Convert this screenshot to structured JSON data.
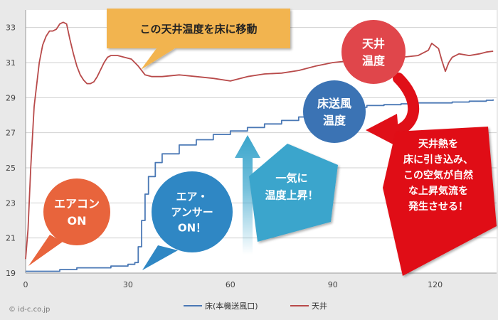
{
  "chart_data": {
    "type": "line",
    "title": "",
    "xlabel": "",
    "ylabel": "",
    "xlim": [
      0,
      138
    ],
    "ylim": [
      19,
      34
    ],
    "x_ticks": [
      "0",
      "30",
      "60",
      "90",
      "120"
    ],
    "y_ticks": [
      "19",
      "21",
      "23",
      "25",
      "27",
      "29",
      "31",
      "33"
    ],
    "grid": true,
    "legend_position": "bottom",
    "series": [
      {
        "name": "床(本機送風口)",
        "color": "#4a78b5",
        "x": [
          0,
          5,
          10,
          15,
          20,
          25,
          30,
          32,
          33,
          34,
          35,
          36,
          38,
          40,
          45,
          50,
          55,
          60,
          65,
          70,
          75,
          80,
          85,
          90,
          95,
          100,
          105,
          110,
          115,
          120,
          125,
          130,
          135,
          137
        ],
        "y": [
          19.1,
          19.1,
          19.2,
          19.3,
          19.3,
          19.4,
          19.5,
          19.6,
          20.5,
          22.0,
          23.5,
          24.5,
          25.3,
          25.8,
          26.3,
          26.6,
          26.9,
          27.1,
          27.3,
          27.5,
          27.7,
          27.9,
          28.1,
          28.3,
          28.45,
          28.55,
          28.6,
          28.65,
          28.7,
          28.7,
          28.75,
          28.8,
          28.85,
          28.9
        ]
      },
      {
        "name": "天井",
        "color": "#b84a4a",
        "x": [
          0,
          0.7,
          1.5,
          2.5,
          4,
          5,
          6,
          7,
          8,
          9,
          10,
          11,
          12,
          13,
          14,
          15,
          16,
          17,
          18,
          19,
          20,
          21,
          22,
          23,
          24,
          25,
          27,
          29,
          31,
          33,
          35,
          37,
          40,
          45,
          50,
          55,
          60,
          65,
          70,
          75,
          80,
          85,
          90,
          95,
          100,
          105,
          110,
          115,
          118,
          119,
          121,
          122,
          123,
          124,
          125,
          127,
          130,
          133,
          135,
          137
        ],
        "y": [
          19.8,
          21.5,
          25.0,
          28.5,
          31.0,
          32.0,
          32.5,
          32.8,
          32.8,
          32.9,
          33.2,
          33.3,
          33.2,
          32.3,
          31.5,
          30.8,
          30.3,
          30.0,
          29.8,
          29.8,
          29.9,
          30.2,
          30.6,
          31.0,
          31.3,
          31.4,
          31.4,
          31.3,
          31.2,
          30.8,
          30.3,
          30.2,
          30.2,
          30.3,
          30.2,
          30.1,
          29.95,
          30.2,
          30.35,
          30.4,
          30.55,
          30.8,
          31.0,
          31.1,
          31.15,
          31.2,
          31.3,
          31.4,
          31.7,
          32.1,
          31.8,
          31.1,
          30.5,
          31.0,
          31.3,
          31.5,
          31.4,
          31.5,
          31.6,
          31.65
        ]
      }
    ],
    "annotations": [
      {
        "id": "move",
        "text": "この天井温度を床に移動",
        "shape": "callout-box",
        "color": "#f2b450"
      },
      {
        "id": "aircon-on",
        "lines": [
          "エアコン",
          "ON"
        ],
        "shape": "bubble",
        "color": "#e8643c"
      },
      {
        "id": "answer-on",
        "lines": [
          "エア・",
          "アンサー",
          "ON！"
        ],
        "shape": "bubble",
        "color": "#2f87c4"
      },
      {
        "id": "rise",
        "lines": [
          "一気に",
          "温度上昇！"
        ],
        "shape": "pentagon",
        "color": "#3aa5cc"
      },
      {
        "id": "ceiling-temp",
        "lines": [
          "天井",
          "温度"
        ],
        "shape": "circle",
        "color": "#e0464b"
      },
      {
        "id": "floor-wind",
        "lines": [
          "床送風",
          "温度"
        ],
        "shape": "circle",
        "color": "#3b73b4"
      },
      {
        "id": "heat",
        "lines": [
          "天井熱を",
          "床に引き込み、",
          "この空気が自然",
          "な上昇気流を",
          "発生させる！"
        ],
        "shape": "banner",
        "color": "#e00f18"
      }
    ]
  },
  "copyright": "© id-c.co.jp"
}
